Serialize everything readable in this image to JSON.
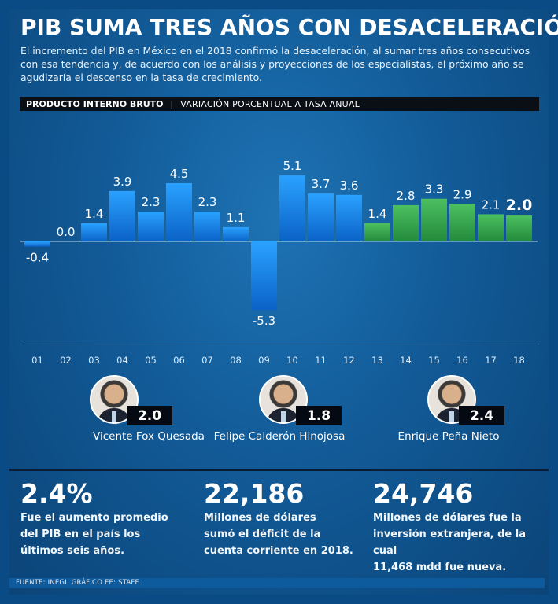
{
  "title": "PIB SUMA TRES AÑOS CON DESACELERACIÓN",
  "intro": "El incremento del PIB en México en el 2018 confirmó la desaceleración, al sumar tres años consecutivos con esa tendencia y, de acuerdo con los análisis y proyecciones de los especialistas, el próximo año se agudizaría el descenso en la tasa de crecimiento.",
  "header": {
    "label": "PRODUCTO INTERNO BRUTO",
    "separator": "|",
    "sublabel": "VARIACIÓN PORCENTUAL A TASA ANUAL"
  },
  "colors": {
    "fox_calderon_bar": "#1b8ff0",
    "pena_bar": "#3aa94f",
    "background": "#125b98"
  },
  "chart_data": {
    "type": "bar",
    "title": "PRODUCTO INTERNO BRUTO",
    "subtitle": "VARIACIÓN PORCENTUAL A TASA ANUAL",
    "xlabel": "",
    "ylabel": "",
    "categories": [
      "01",
      "02",
      "03",
      "04",
      "05",
      "06",
      "07",
      "08",
      "09",
      "10",
      "11",
      "12",
      "13",
      "14",
      "15",
      "16",
      "17",
      "18"
    ],
    "values": [
      -0.4,
      0.0,
      1.4,
      3.9,
      2.3,
      4.5,
      2.3,
      1.1,
      -5.3,
      5.1,
      3.7,
      3.6,
      1.4,
      2.8,
      3.3,
      2.9,
      2.1,
      2.0
    ],
    "value_labels": [
      "-0.4",
      "0.0",
      "1.4",
      "3.9",
      "2.3",
      "4.5",
      "2.3",
      "1.1",
      "-5.3",
      "5.1",
      "3.7",
      "3.6",
      "1.4",
      "2.8",
      "3.3",
      "2.9",
      "2.1",
      "2.0"
    ],
    "series_groups": [
      {
        "name": "Vicente Fox Quesada",
        "from": "01",
        "to": "06",
        "color": "#1b8ff0"
      },
      {
        "name": "Felipe Calderón Hinojosa",
        "from": "07",
        "to": "12",
        "color": "#1b8ff0"
      },
      {
        "name": "Enrique Peña Nieto",
        "from": "13",
        "to": "18",
        "color": "#3aa94f"
      }
    ],
    "highlighted_category": "18",
    "ylim": [
      -5.3,
      5.1
    ],
    "grid": false
  },
  "presidents": [
    {
      "name": "Vicente Fox Quesada",
      "average": "2.0"
    },
    {
      "name": "Felipe Calderón Hinojosa",
      "average": "1.8"
    },
    {
      "name": "Enrique Peña Nieto",
      "average": "2.4"
    }
  ],
  "stats": [
    {
      "value": "2.4%",
      "lines": [
        "Fue el aumento promedio",
        "del PIB en el país los",
        "últimos seis años."
      ]
    },
    {
      "value": "22,186",
      "lines": [
        "Millones de dólares",
        "sumó el déficit de la",
        "cuenta corriente en 2018."
      ]
    },
    {
      "value": "24,746",
      "lines": [
        "Millones de dólares fue la",
        "inversión extranjera, de la cual",
        "11,468 mdd fue nueva."
      ]
    }
  ],
  "footer": "FUENTE: INEGI. GRÁFICO EE: STAFF."
}
